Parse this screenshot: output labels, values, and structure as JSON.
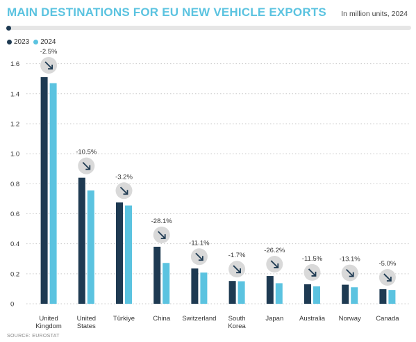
{
  "title": "MAIN DESTINATIONS FOR EU NEW VEHICLE EXPORTS",
  "subtitle": "In million units, 2024",
  "source": "SOURCE: EUROSTAT",
  "colors": {
    "series_2023": "#1e3a52",
    "series_2024": "#5bc3e0",
    "circle": "#d9d9d9",
    "arrow": "#1e3a52"
  },
  "icons": {
    "change": "arrow-down-right-icon"
  },
  "chart_data": {
    "type": "bar",
    "title": "MAIN DESTINATIONS FOR EU NEW VEHICLE EXPORTS",
    "subtitle": "In million units, 2024",
    "categories": [
      "United Kingdom",
      "United States",
      "Türkiye",
      "China",
      "Switzerland",
      "South Korea",
      "Japan",
      "Australia",
      "Norway",
      "Canada"
    ],
    "category_lines": [
      [
        "United",
        "Kingdom"
      ],
      [
        "United",
        "States"
      ],
      [
        "Türkiye"
      ],
      [
        "China"
      ],
      [
        "Switzerland"
      ],
      [
        "South",
        "Korea"
      ],
      [
        "Japan"
      ],
      [
        "Australia"
      ],
      [
        "Norway"
      ],
      [
        "Canada"
      ]
    ],
    "series": [
      {
        "name": "2023",
        "values": [
          1.51,
          0.84,
          0.675,
          0.38,
          0.235,
          0.152,
          0.185,
          0.13,
          0.127,
          0.097
        ]
      },
      {
        "name": "2024",
        "values": [
          1.47,
          0.755,
          0.655,
          0.272,
          0.208,
          0.15,
          0.137,
          0.116,
          0.11,
          0.092
        ]
      }
    ],
    "changes": [
      "-2.5%",
      "-10.5%",
      "-3.2%",
      "-28.1%",
      "-11.1%",
      "-1.7%",
      "-26.2%",
      "-11.5%",
      "-13.1%",
      "-5.0%"
    ],
    "ylim": [
      0,
      1.7
    ],
    "yticks": [
      0,
      0.2,
      0.4,
      0.6,
      0.8,
      1.0,
      1.2,
      1.4,
      1.6
    ],
    "ytick_labels": [
      "0",
      "0.2",
      "0.4",
      "0.6",
      "0.8",
      "1.0",
      "1.2",
      "1.4",
      "1.6"
    ],
    "grid": "dotted-horizontal",
    "legend_position": "top-left",
    "xlabel": "",
    "ylabel": ""
  }
}
